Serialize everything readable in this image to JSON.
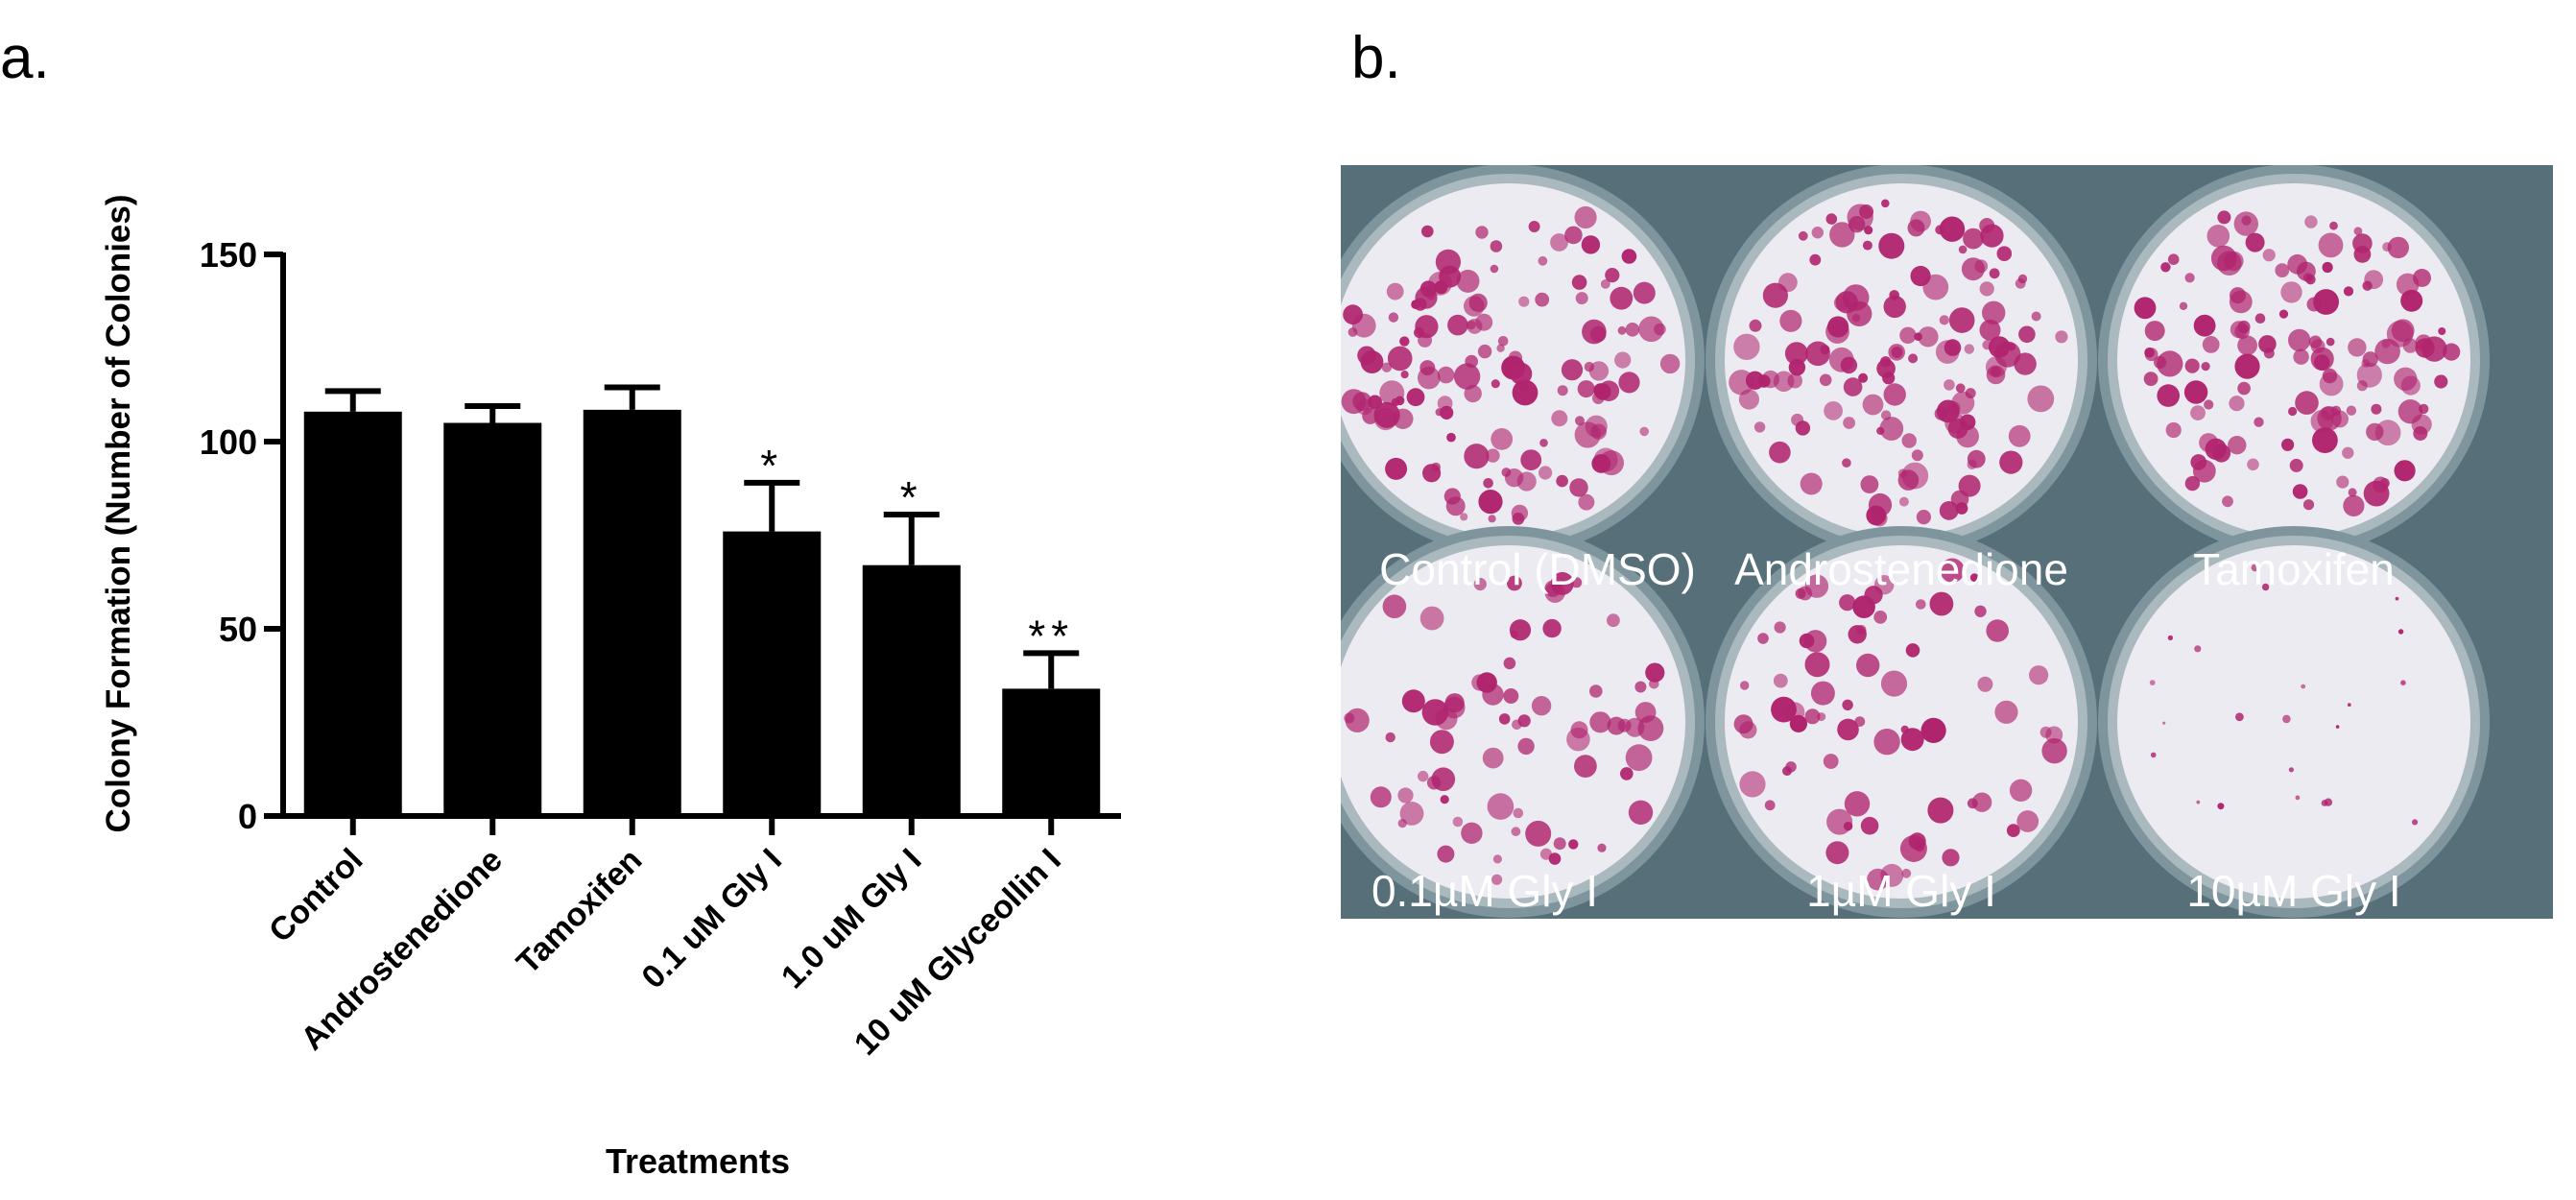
{
  "panels": {
    "a_letter": "a.",
    "b_letter": "b."
  },
  "chart_data": {
    "type": "bar",
    "title": "",
    "xlabel": "Treatments",
    "ylabel": "Colony Formation (Number of Colonies)",
    "ylim": [
      0,
      150
    ],
    "yticks": [
      "0",
      "50",
      "100",
      "150"
    ],
    "categories": [
      "Control",
      "Androstenedione",
      "Tamoxifen",
      "0.1 uM Gly I",
      "1.0 uM Gly I",
      "10 uM Glyceollin I"
    ],
    "values": [
      108,
      105,
      108.5,
      76,
      67,
      34
    ],
    "errors": [
      5.5,
      4.5,
      6,
      13,
      13.5,
      9.5
    ],
    "significance": [
      "",
      "",
      "",
      "*",
      "*",
      "**"
    ],
    "grid": false,
    "bar_color": "#000000"
  },
  "photo": {
    "wells": [
      {
        "label": "Control (DMSO)",
        "colony_level": "dense"
      },
      {
        "label": "Androstenedione",
        "colony_level": "dense"
      },
      {
        "label": "Tamoxifen",
        "colony_level": "dense"
      },
      {
        "label": "0.1µM Gly I",
        "colony_level": "moderate"
      },
      {
        "label": "1µM Gly I",
        "colony_level": "moderate"
      },
      {
        "label": "10µM Gly I",
        "colony_level": "sparse"
      }
    ],
    "colony_color": "#b0246e",
    "plate_color": "#566f78"
  }
}
